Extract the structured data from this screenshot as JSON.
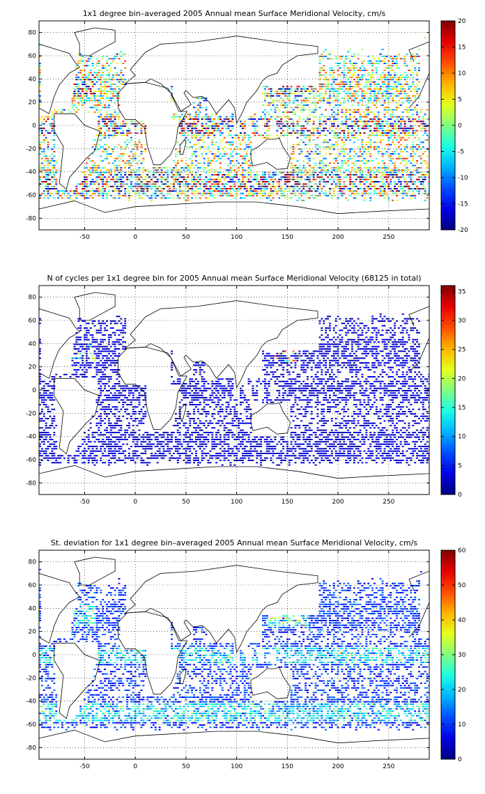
{
  "chart_data": [
    {
      "type": "heatmap",
      "title": "1x1 degree bin–averaged 2005 Annual mean Surface Meridional Velocity, cm/s",
      "xlim": [
        -95,
        290
      ],
      "ylim": [
        -90,
        90
      ],
      "xticks": [
        "-50",
        "0",
        "50",
        "100",
        "150",
        "200",
        "250"
      ],
      "xtick_values": [
        -50,
        0,
        50,
        100,
        150,
        200,
        250
      ],
      "yticks": [
        "80",
        "60",
        "40",
        "20",
        "0",
        "-20",
        "-40",
        "-60",
        "-80"
      ],
      "ytick_values": [
        80,
        60,
        40,
        20,
        0,
        -20,
        -40,
        -60,
        -80
      ],
      "colorbar": {
        "min": -20,
        "max": 20,
        "ticks": [
          "20",
          "15",
          "10",
          "5",
          "0",
          "-5",
          "-10",
          "-15",
          "-20"
        ],
        "tick_values": [
          20,
          15,
          10,
          5,
          0,
          -5,
          -10,
          -15,
          -20
        ]
      },
      "colormap": "jet",
      "grid": true,
      "field": "diverging"
    },
    {
      "type": "heatmap",
      "title": "N of cycles per 1x1 degree bin for 2005 Annual mean Surface Meridional Velocity (68125 in total)",
      "xlim": [
        -95,
        290
      ],
      "ylim": [
        -90,
        90
      ],
      "xticks": [
        "-50",
        "0",
        "50",
        "100",
        "150",
        "200",
        "250"
      ],
      "xtick_values": [
        -50,
        0,
        50,
        100,
        150,
        200,
        250
      ],
      "yticks": [
        "80",
        "60",
        "40",
        "20",
        "0",
        "-20",
        "-40",
        "-60",
        "-80"
      ],
      "ytick_values": [
        80,
        60,
        40,
        20,
        0,
        -20,
        -40,
        -60,
        -80
      ],
      "colorbar": {
        "min": 0,
        "max": 36,
        "ticks": [
          "35",
          "30",
          "25",
          "20",
          "15",
          "10",
          "5",
          "0"
        ],
        "tick_values": [
          35,
          30,
          25,
          20,
          15,
          10,
          5,
          0
        ]
      },
      "colormap": "jet",
      "grid": true,
      "field": "count"
    },
    {
      "type": "heatmap",
      "title": "St. deviation for 1x1 degree bin–averaged 2005 Annual mean Surface Meridional Velocity, cm/s",
      "xlim": [
        -95,
        290
      ],
      "ylim": [
        -90,
        90
      ],
      "xticks": [
        "-50",
        "0",
        "50",
        "100",
        "150",
        "200",
        "250"
      ],
      "xtick_values": [
        -50,
        0,
        50,
        100,
        150,
        200,
        250
      ],
      "yticks": [
        "80",
        "60",
        "40",
        "20",
        "0",
        "-20",
        "-40",
        "-60",
        "-80"
      ],
      "ytick_values": [
        80,
        60,
        40,
        20,
        0,
        -20,
        -40,
        -60,
        -80
      ],
      "colorbar": {
        "min": 0,
        "max": 60,
        "ticks": [
          "60",
          "50",
          "40",
          "30",
          "20",
          "10",
          "0"
        ],
        "tick_values": [
          60,
          50,
          40,
          30,
          20,
          10,
          0
        ]
      },
      "colormap": "jet",
      "grid": true,
      "field": "std"
    }
  ]
}
